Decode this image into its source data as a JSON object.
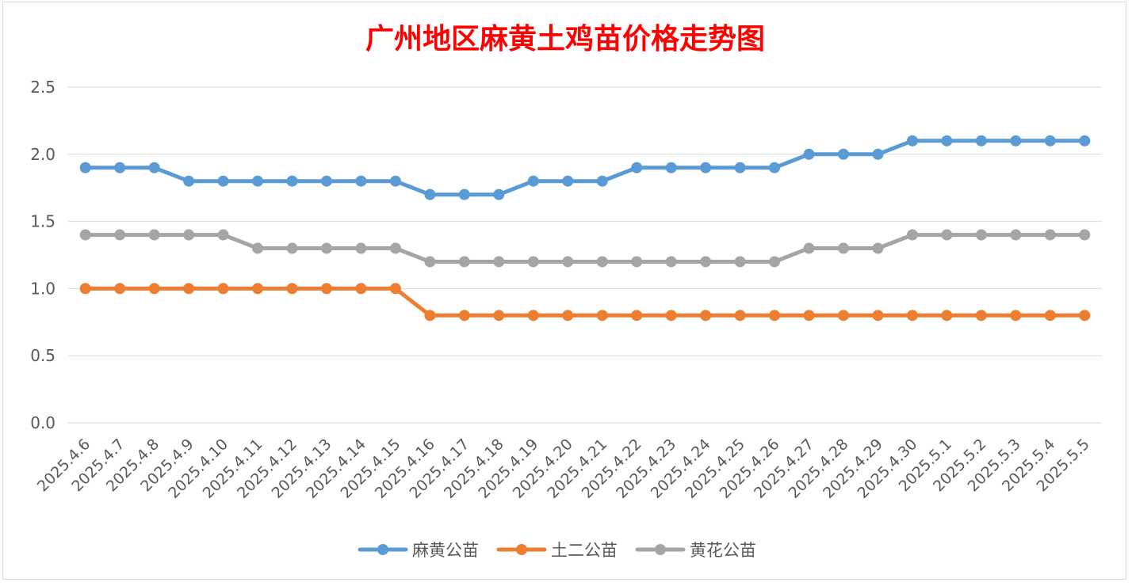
{
  "chart_data": {
    "type": "line",
    "title": "广州地区麻黄土鸡苗价格走势图",
    "xlabel": "",
    "ylabel": "",
    "ylim": [
      0,
      2.5
    ],
    "yticks": [
      "0.0",
      "0.5",
      "1.0",
      "1.5",
      "2.0",
      "2.5"
    ],
    "grid": true,
    "legend_position": "bottom",
    "categories": [
      "2025.4.6",
      "2025.4.7",
      "2025.4.8",
      "2025.4.9",
      "2025.4.10",
      "2025.4.11",
      "2025.4.12",
      "2025.4.13",
      "2025.4.14",
      "2025.4.15",
      "2025.4.16",
      "2025.4.17",
      "2025.4.18",
      "2025.4.19",
      "2025.4.20",
      "2025.4.21",
      "2025.4.22",
      "2025.4.23",
      "2025.4.24",
      "2025.4.25",
      "2025.4.26",
      "2025.4.27",
      "2025.4.28",
      "2025.4.29",
      "2025.4.30",
      "2025.5.1",
      "2025.5.2",
      "2025.5.3",
      "2025.5.4",
      "2025.5.5"
    ],
    "series": [
      {
        "name": "麻黄公苗",
        "color": "#5b9bd5",
        "values": [
          1.9,
          1.9,
          1.9,
          1.8,
          1.8,
          1.8,
          1.8,
          1.8,
          1.8,
          1.8,
          1.7,
          1.7,
          1.7,
          1.8,
          1.8,
          1.8,
          1.9,
          1.9,
          1.9,
          1.9,
          1.9,
          2.0,
          2.0,
          2.0,
          2.1,
          2.1,
          2.1,
          2.1,
          2.1,
          2.1
        ]
      },
      {
        "name": "土二公苗",
        "color": "#ed7d31",
        "values": [
          1.0,
          1.0,
          1.0,
          1.0,
          1.0,
          1.0,
          1.0,
          1.0,
          1.0,
          1.0,
          0.8,
          0.8,
          0.8,
          0.8,
          0.8,
          0.8,
          0.8,
          0.8,
          0.8,
          0.8,
          0.8,
          0.8,
          0.8,
          0.8,
          0.8,
          0.8,
          0.8,
          0.8,
          0.8,
          0.8
        ]
      },
      {
        "name": "黄花公苗",
        "color": "#a5a5a5",
        "values": [
          1.4,
          1.4,
          1.4,
          1.4,
          1.4,
          1.3,
          1.3,
          1.3,
          1.3,
          1.3,
          1.2,
          1.2,
          1.2,
          1.2,
          1.2,
          1.2,
          1.2,
          1.2,
          1.2,
          1.2,
          1.2,
          1.3,
          1.3,
          1.3,
          1.4,
          1.4,
          1.4,
          1.4,
          1.4,
          1.4
        ]
      }
    ]
  }
}
